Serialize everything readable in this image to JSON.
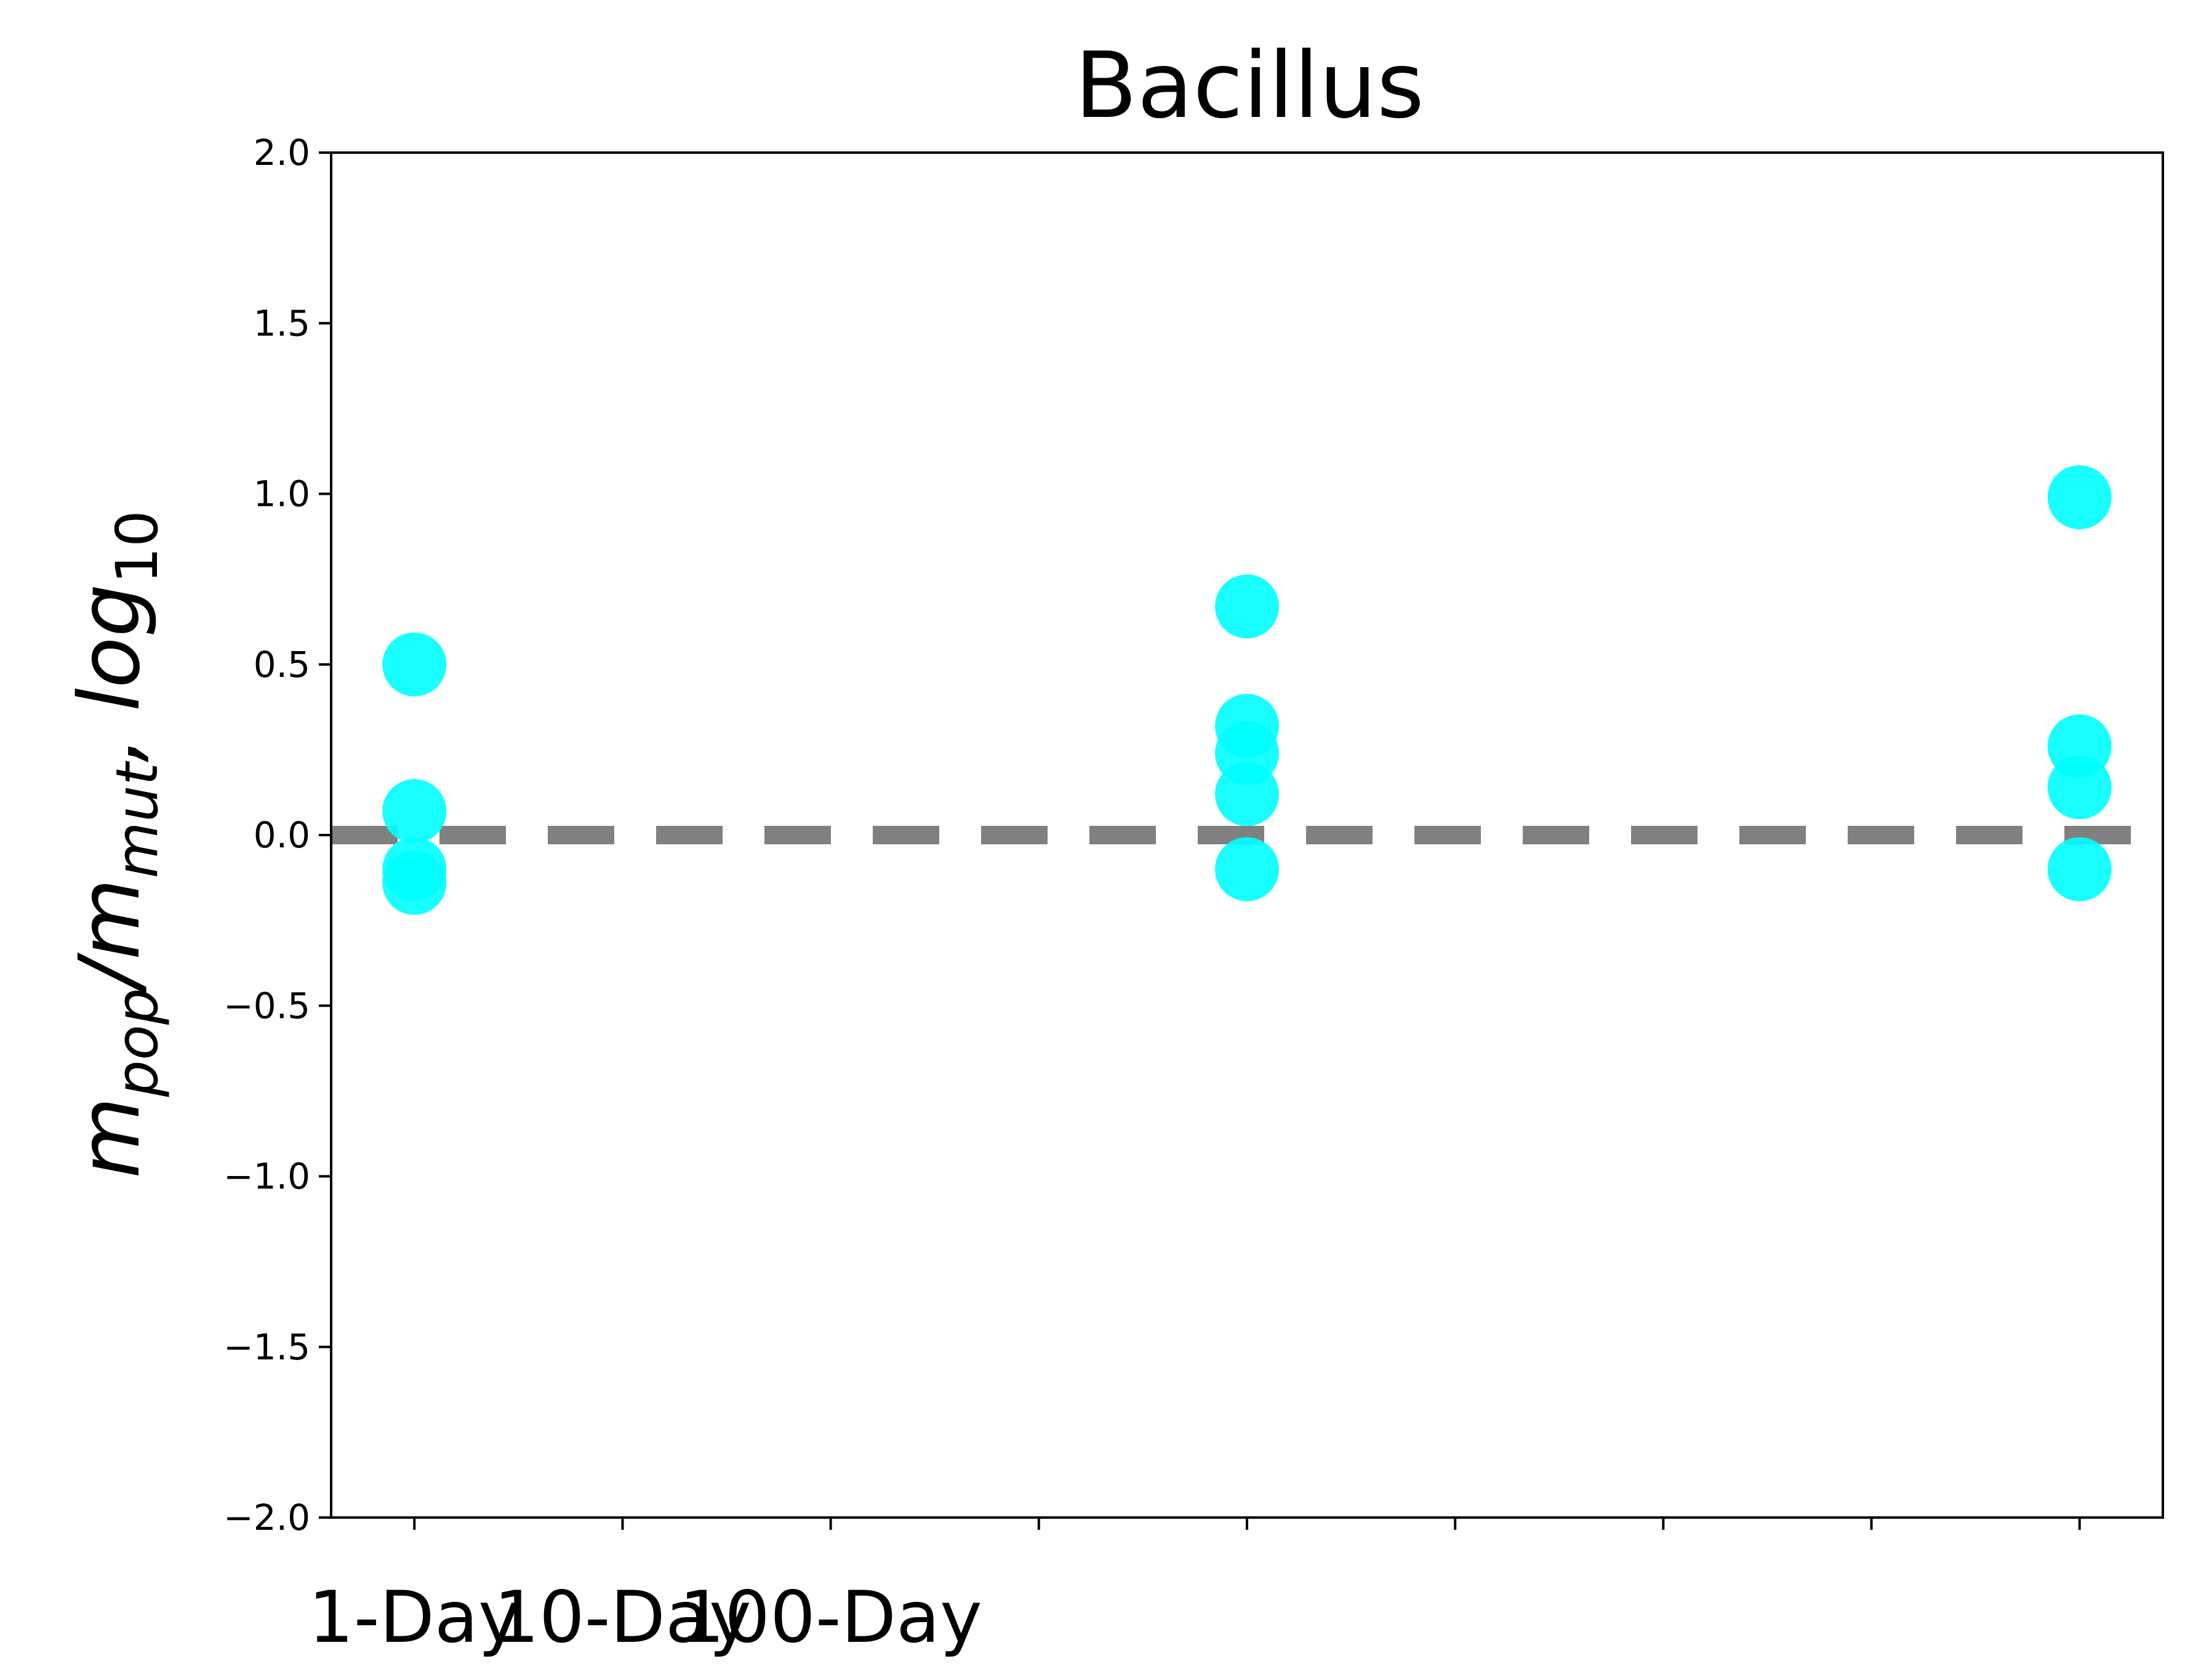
{
  "chart_data": {
    "type": "scatter",
    "title": "Bacillus",
    "ylabel": {
      "base": "m",
      "num_sub": "pop",
      "slash": "/",
      "den_sub": "mut",
      "comma": ",",
      "log": "log",
      "log_sub": "10"
    },
    "xlabel": "",
    "ylim": [
      -2.0,
      2.0
    ],
    "xlim": [
      -0.4,
      8.4
    ],
    "y_ticks": [
      -2.0,
      -1.5,
      -1.0,
      -0.5,
      0.0,
      0.5,
      1.0,
      1.5,
      2.0
    ],
    "y_tick_labels": [
      "−2.0",
      "−1.5",
      "−1.0",
      "−0.5",
      "0.0",
      "0.5",
      "1.0",
      "1.5",
      "2.0"
    ],
    "x_ticks": [
      0,
      1,
      2,
      3,
      4,
      5,
      6,
      7,
      8
    ],
    "x_tick_labels": [
      "1-Day",
      "10-Day",
      "100-Day",
      "",
      "",
      "",
      "",
      "",
      ""
    ],
    "reference_line": {
      "y": 0.0,
      "style": "dashed",
      "color": "#808080"
    },
    "marker_color": "#00ffff",
    "grid": false,
    "series": [
      {
        "points": [
          {
            "x": 0,
            "y": 0.5
          },
          {
            "x": 0,
            "y": 0.07
          },
          {
            "x": 0,
            "y": -0.1
          },
          {
            "x": 0,
            "y": -0.14
          },
          {
            "x": 4,
            "y": 0.67
          },
          {
            "x": 4,
            "y": 0.32
          },
          {
            "x": 4,
            "y": 0.24
          },
          {
            "x": 4,
            "y": 0.12
          },
          {
            "x": 4,
            "y": -0.1
          },
          {
            "x": 8,
            "y": 0.99
          },
          {
            "x": 8,
            "y": 0.26
          },
          {
            "x": 8,
            "y": 0.14
          },
          {
            "x": 8,
            "y": -0.1
          }
        ]
      }
    ]
  }
}
